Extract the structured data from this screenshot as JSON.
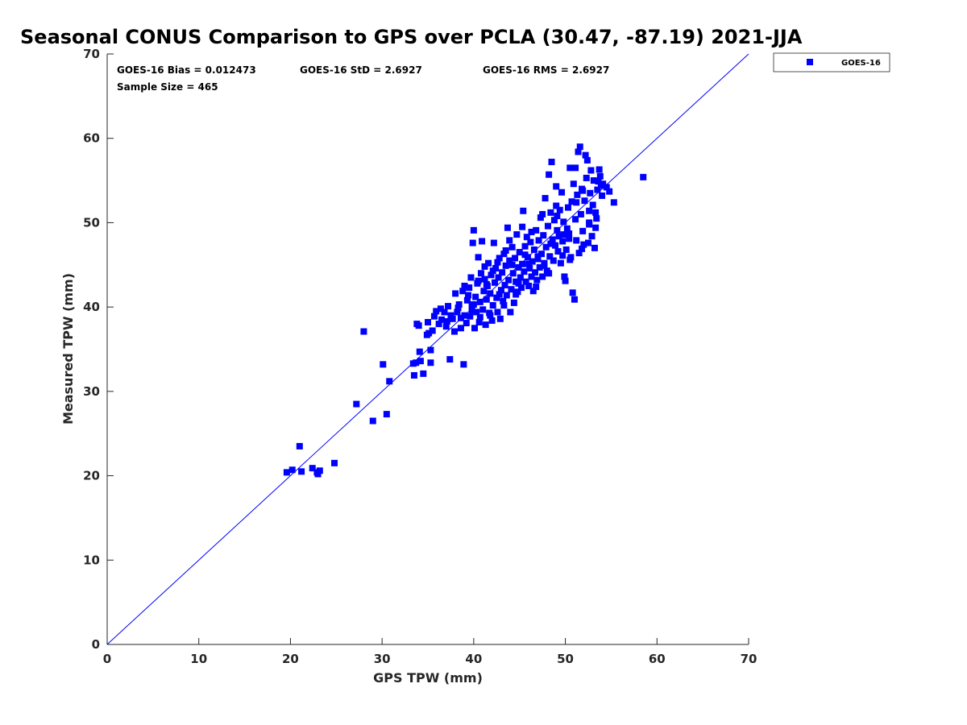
{
  "chart_data": {
    "type": "scatter",
    "title": "Seasonal CONUS Comparison to GPS over PCLA (30.47, -87.19) 2021-JJA",
    "xlabel": "GPS TPW (mm)",
    "ylabel": "Measured TPW (mm)",
    "xlim": [
      0,
      70
    ],
    "ylim": [
      0,
      70
    ],
    "xticks": [
      0,
      10,
      20,
      30,
      40,
      50,
      60,
      70
    ],
    "yticks": [
      0,
      10,
      20,
      30,
      40,
      50,
      60,
      70
    ],
    "grid": false,
    "legend_position": "outside top-right",
    "reference_line": {
      "type": "1:1",
      "color": "#0000ff"
    },
    "stats": {
      "bias": "GOES-16 Bias = 0.012473",
      "std": "GOES-16 StD = 2.6927",
      "rms": "GOES-16 RMS = 2.6927",
      "sample_size": "Sample Size = 465"
    },
    "series": [
      {
        "name": "GOES-16",
        "color": "#0000ff",
        "marker": "square",
        "points": [
          [
            19.6,
            20.4
          ],
          [
            20.2,
            20.7
          ],
          [
            21.0,
            23.5
          ],
          [
            21.2,
            20.5
          ],
          [
            22.4,
            20.9
          ],
          [
            22.9,
            20.4
          ],
          [
            23.0,
            20.2
          ],
          [
            23.2,
            20.6
          ],
          [
            24.8,
            21.5
          ],
          [
            27.2,
            28.5
          ],
          [
            28.0,
            37.1
          ],
          [
            29.0,
            26.5
          ],
          [
            30.1,
            33.2
          ],
          [
            30.5,
            27.3
          ],
          [
            30.8,
            31.2
          ],
          [
            33.5,
            31.9
          ],
          [
            33.7,
            33.4
          ],
          [
            33.8,
            38.0
          ],
          [
            34.1,
            34.7
          ],
          [
            34.2,
            33.6
          ],
          [
            34.5,
            32.1
          ],
          [
            34.9,
            36.7
          ],
          [
            35.0,
            38.2
          ],
          [
            35.3,
            33.4
          ],
          [
            35.3,
            34.9
          ],
          [
            35.5,
            37.2
          ],
          [
            35.7,
            38.9
          ],
          [
            35.9,
            39.5
          ],
          [
            36.2,
            38.0
          ],
          [
            36.5,
            38.5
          ],
          [
            36.8,
            39.4
          ],
          [
            37.0,
            37.7
          ],
          [
            37.2,
            40.1
          ],
          [
            37.4,
            33.8
          ],
          [
            37.5,
            39.0
          ],
          [
            37.7,
            38.6
          ],
          [
            37.9,
            37.1
          ],
          [
            38.0,
            41.6
          ],
          [
            38.2,
            39.4
          ],
          [
            38.4,
            40.3
          ],
          [
            38.6,
            37.5
          ],
          [
            38.8,
            41.9
          ],
          [
            38.9,
            33.2
          ],
          [
            39.0,
            39.0
          ],
          [
            39.2,
            38.1
          ],
          [
            39.3,
            40.8
          ],
          [
            39.5,
            42.3
          ],
          [
            39.6,
            38.9
          ],
          [
            39.7,
            43.5
          ],
          [
            39.8,
            40.1
          ],
          [
            39.9,
            47.6
          ],
          [
            40.0,
            49.1
          ],
          [
            40.1,
            37.5
          ],
          [
            40.2,
            41.2
          ],
          [
            40.3,
            39.4
          ],
          [
            40.4,
            42.8
          ],
          [
            40.5,
            45.9
          ],
          [
            40.6,
            38.2
          ],
          [
            40.7,
            40.6
          ],
          [
            40.8,
            44.0
          ],
          [
            40.9,
            47.8
          ],
          [
            41.0,
            39.7
          ],
          [
            41.1,
            41.9
          ],
          [
            41.2,
            43.3
          ],
          [
            41.3,
            37.9
          ],
          [
            41.4,
            40.9
          ],
          [
            41.5,
            42.5
          ],
          [
            41.6,
            45.2
          ],
          [
            41.7,
            39.3
          ],
          [
            41.8,
            41.6
          ],
          [
            41.9,
            43.8
          ],
          [
            42.0,
            38.4
          ],
          [
            42.1,
            40.2
          ],
          [
            42.2,
            47.6
          ],
          [
            42.3,
            42.9
          ],
          [
            42.4,
            44.6
          ],
          [
            42.5,
            41.1
          ],
          [
            42.6,
            39.4
          ],
          [
            42.7,
            43.5
          ],
          [
            42.8,
            45.8
          ],
          [
            42.9,
            38.6
          ],
          [
            43.0,
            42.0
          ],
          [
            43.1,
            44.1
          ],
          [
            43.2,
            40.7
          ],
          [
            43.3,
            46.3
          ],
          [
            43.4,
            42.6
          ],
          [
            43.5,
            44.9
          ],
          [
            43.6,
            41.4
          ],
          [
            43.7,
            49.4
          ],
          [
            43.8,
            43.2
          ],
          [
            43.9,
            45.5
          ],
          [
            44.0,
            39.4
          ],
          [
            44.1,
            42.1
          ],
          [
            44.2,
            47.1
          ],
          [
            44.3,
            44.0
          ],
          [
            44.4,
            40.5
          ],
          [
            44.5,
            45.8
          ],
          [
            44.6,
            43.0
          ],
          [
            44.7,
            48.6
          ],
          [
            44.8,
            41.8
          ],
          [
            44.9,
            44.7
          ],
          [
            45.0,
            46.5
          ],
          [
            45.1,
            43.5
          ],
          [
            45.2,
            42.3
          ],
          [
            45.3,
            45.1
          ],
          [
            45.4,
            51.4
          ],
          [
            45.5,
            44.2
          ],
          [
            45.6,
            47.2
          ],
          [
            45.7,
            43.0
          ],
          [
            45.8,
            48.3
          ],
          [
            45.9,
            45.9
          ],
          [
            46.0,
            42.5
          ],
          [
            46.1,
            44.6
          ],
          [
            46.2,
            47.7
          ],
          [
            46.3,
            43.6
          ],
          [
            46.4,
            45.4
          ],
          [
            46.5,
            41.9
          ],
          [
            46.6,
            46.8
          ],
          [
            46.7,
            44.1
          ],
          [
            46.8,
            49.1
          ],
          [
            46.9,
            43.2
          ],
          [
            47.0,
            45.7
          ],
          [
            47.1,
            47.9
          ],
          [
            47.2,
            44.7
          ],
          [
            47.3,
            50.6
          ],
          [
            47.4,
            46.3
          ],
          [
            47.5,
            43.6
          ],
          [
            47.6,
            48.5
          ],
          [
            47.7,
            45.2
          ],
          [
            47.8,
            52.9
          ],
          [
            47.9,
            47.1
          ],
          [
            48.0,
            44.3
          ],
          [
            48.1,
            49.6
          ],
          [
            48.2,
            55.7
          ],
          [
            48.3,
            46.0
          ],
          [
            48.4,
            51.2
          ],
          [
            48.5,
            57.2
          ],
          [
            48.6,
            48.0
          ],
          [
            48.7,
            45.5
          ],
          [
            48.8,
            50.3
          ],
          [
            48.9,
            47.3
          ],
          [
            49.0,
            52.0
          ],
          [
            49.1,
            49.1
          ],
          [
            49.2,
            46.6
          ],
          [
            49.3,
            48.4
          ],
          [
            49.4,
            51.5
          ],
          [
            49.5,
            45.2
          ],
          [
            49.6,
            53.6
          ],
          [
            49.7,
            47.8
          ],
          [
            49.8,
            50.1
          ],
          [
            49.9,
            43.6
          ],
          [
            50.0,
            43.1
          ],
          [
            50.1,
            46.8
          ],
          [
            50.2,
            49.3
          ],
          [
            50.3,
            51.8
          ],
          [
            50.4,
            48.1
          ],
          [
            50.5,
            56.5
          ],
          [
            50.6,
            45.9
          ],
          [
            50.7,
            52.5
          ],
          [
            50.8,
            41.7
          ],
          [
            50.9,
            54.6
          ],
          [
            51.0,
            40.9
          ],
          [
            51.1,
            50.4
          ],
          [
            51.2,
            47.9
          ],
          [
            51.3,
            53.3
          ],
          [
            51.4,
            58.4
          ],
          [
            51.5,
            46.4
          ],
          [
            51.6,
            59.0
          ],
          [
            51.7,
            51.0
          ],
          [
            51.8,
            54.0
          ],
          [
            51.9,
            49.0
          ],
          [
            52.0,
            47.4
          ],
          [
            52.1,
            52.6
          ],
          [
            52.2,
            58.0
          ],
          [
            52.3,
            55.3
          ],
          [
            52.4,
            57.4
          ],
          [
            52.5,
            47.6
          ],
          [
            52.6,
            50.0
          ],
          [
            52.7,
            53.5
          ],
          [
            52.8,
            56.2
          ],
          [
            52.9,
            48.4
          ],
          [
            53.0,
            52.1
          ],
          [
            53.1,
            55.0
          ],
          [
            53.2,
            47.0
          ],
          [
            53.3,
            51.2
          ],
          [
            53.4,
            50.5
          ],
          [
            53.5,
            53.9
          ],
          [
            53.6,
            54.9
          ],
          [
            53.7,
            56.3
          ],
          [
            53.8,
            55.5
          ],
          [
            53.9,
            54.4
          ],
          [
            54.0,
            53.2
          ],
          [
            54.1,
            54.6
          ],
          [
            54.5,
            54.2
          ],
          [
            54.8,
            53.7
          ],
          [
            55.3,
            52.4
          ],
          [
            58.5,
            55.4
          ],
          [
            33.4,
            33.3
          ],
          [
            34.0,
            37.8
          ],
          [
            35.1,
            36.9
          ],
          [
            36.4,
            39.8
          ],
          [
            37.1,
            38.3
          ],
          [
            38.3,
            39.9
          ],
          [
            39.0,
            42.5
          ],
          [
            39.8,
            39.6
          ],
          [
            40.5,
            43.1
          ],
          [
            41.2,
            44.8
          ],
          [
            41.8,
            39.0
          ],
          [
            42.6,
            45.3
          ],
          [
            43.3,
            40.2
          ],
          [
            43.9,
            47.9
          ],
          [
            44.6,
            41.5
          ],
          [
            45.3,
            49.5
          ],
          [
            46.0,
            45.1
          ],
          [
            46.8,
            42.4
          ],
          [
            47.5,
            51.0
          ],
          [
            48.2,
            44.0
          ],
          [
            49.0,
            54.3
          ],
          [
            49.7,
            46.1
          ],
          [
            50.4,
            48.7
          ],
          [
            51.1,
            56.5
          ],
          [
            51.8,
            46.9
          ],
          [
            52.6,
            51.4
          ],
          [
            53.3,
            49.4
          ],
          [
            38.6,
            38.7
          ],
          [
            39.4,
            41.4
          ],
          [
            40.0,
            40.3
          ],
          [
            40.7,
            38.8
          ],
          [
            41.4,
            42.7
          ],
          [
            42.1,
            44.3
          ],
          [
            42.8,
            41.5
          ],
          [
            43.5,
            46.7
          ],
          [
            44.2,
            45.0
          ],
          [
            44.9,
            42.8
          ],
          [
            45.6,
            46.2
          ],
          [
            46.3,
            48.9
          ],
          [
            47.0,
            46.0
          ],
          [
            47.7,
            44.9
          ],
          [
            48.4,
            47.5
          ],
          [
            49.1,
            50.8
          ],
          [
            49.8,
            48.6
          ],
          [
            50.5,
            45.6
          ],
          [
            51.2,
            52.4
          ],
          [
            51.9,
            53.8
          ],
          [
            52.6,
            49.8
          ]
        ]
      }
    ]
  }
}
